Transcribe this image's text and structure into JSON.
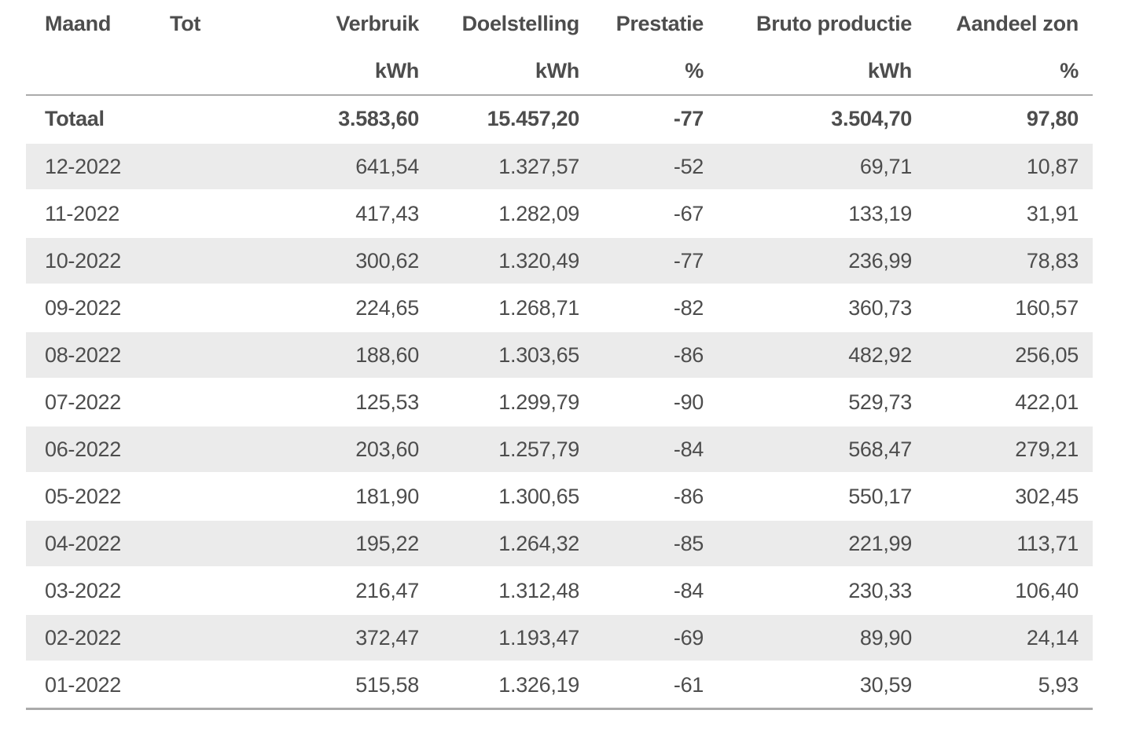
{
  "colors": {
    "text": "#4d4d4d",
    "row_stripe": "#ebebeb",
    "separator_line": "#ababab",
    "background": "#ffffff"
  },
  "table": {
    "columns": [
      {
        "id": "maand",
        "label": "Maand",
        "unit": ""
      },
      {
        "id": "tot",
        "label": "Tot",
        "unit": ""
      },
      {
        "id": "verbruik",
        "label": "Verbruik",
        "unit": "kWh"
      },
      {
        "id": "doelstelling",
        "label": "Doelstelling",
        "unit": "kWh"
      },
      {
        "id": "prestatie",
        "label": "Prestatie",
        "unit": "%"
      },
      {
        "id": "bruto-productie",
        "label": "Bruto productie",
        "unit": "kWh"
      },
      {
        "id": "aandeel-zon",
        "label": "Aandeel zon",
        "unit": "%"
      }
    ],
    "total_row": [
      "Totaal",
      "",
      "3.583,60",
      "15.457,20",
      "-77",
      "3.504,70",
      "97,80"
    ],
    "rows": [
      [
        "12-2022",
        "",
        "641,54",
        "1.327,57",
        "-52",
        "69,71",
        "10,87"
      ],
      [
        "11-2022",
        "",
        "417,43",
        "1.282,09",
        "-67",
        "133,19",
        "31,91"
      ],
      [
        "10-2022",
        "",
        "300,62",
        "1.320,49",
        "-77",
        "236,99",
        "78,83"
      ],
      [
        "09-2022",
        "",
        "224,65",
        "1.268,71",
        "-82",
        "360,73",
        "160,57"
      ],
      [
        "08-2022",
        "",
        "188,60",
        "1.303,65",
        "-86",
        "482,92",
        "256,05"
      ],
      [
        "07-2022",
        "",
        "125,53",
        "1.299,79",
        "-90",
        "529,73",
        "422,01"
      ],
      [
        "06-2022",
        "",
        "203,60",
        "1.257,79",
        "-84",
        "568,47",
        "279,21"
      ],
      [
        "05-2022",
        "",
        "181,90",
        "1.300,65",
        "-86",
        "550,17",
        "302,45"
      ],
      [
        "04-2022",
        "",
        "195,22",
        "1.264,32",
        "-85",
        "221,99",
        "113,71"
      ],
      [
        "03-2022",
        "",
        "216,47",
        "1.312,48",
        "-84",
        "230,33",
        "106,40"
      ],
      [
        "02-2022",
        "",
        "372,47",
        "1.193,47",
        "-69",
        "89,90",
        "24,14"
      ],
      [
        "01-2022",
        "",
        "515,58",
        "1.326,19",
        "-61",
        "30,59",
        "5,93"
      ]
    ]
  },
  "chart_data": {
    "type": "table",
    "title": "",
    "columns": [
      "Maand",
      "Tot",
      "Verbruik kWh",
      "Doelstelling kWh",
      "Prestatie %",
      "Bruto productie kWh",
      "Aandeel zon %"
    ],
    "rows": [
      [
        "Totaal",
        "",
        3583.6,
        15457.2,
        -77,
        3504.7,
        97.8
      ],
      [
        "12-2022",
        "",
        641.54,
        1327.57,
        -52,
        69.71,
        10.87
      ],
      [
        "11-2022",
        "",
        417.43,
        1282.09,
        -67,
        133.19,
        31.91
      ],
      [
        "10-2022",
        "",
        300.62,
        1320.49,
        -77,
        236.99,
        78.83
      ],
      [
        "09-2022",
        "",
        224.65,
        1268.71,
        -82,
        360.73,
        160.57
      ],
      [
        "08-2022",
        "",
        188.6,
        1303.65,
        -86,
        482.92,
        256.05
      ],
      [
        "07-2022",
        "",
        125.53,
        1299.79,
        -90,
        529.73,
        422.01
      ],
      [
        "06-2022",
        "",
        203.6,
        1257.79,
        -84,
        568.47,
        279.21
      ],
      [
        "05-2022",
        "",
        181.9,
        1300.65,
        -86,
        550.17,
        302.45
      ],
      [
        "04-2022",
        "",
        195.22,
        1264.32,
        -85,
        221.99,
        113.71
      ],
      [
        "03-2022",
        "",
        216.47,
        1312.48,
        -84,
        230.33,
        106.4
      ],
      [
        "02-2022",
        "",
        372.47,
        1193.47,
        -69,
        89.9,
        24.14
      ],
      [
        "01-2022",
        "",
        515.58,
        1326.19,
        -61,
        30.59,
        5.93
      ]
    ],
    "layout_hints": {
      "striped_rows": true,
      "bold_total_row": true,
      "numeric_columns_right_aligned": true,
      "locale": "nl-NL"
    }
  }
}
